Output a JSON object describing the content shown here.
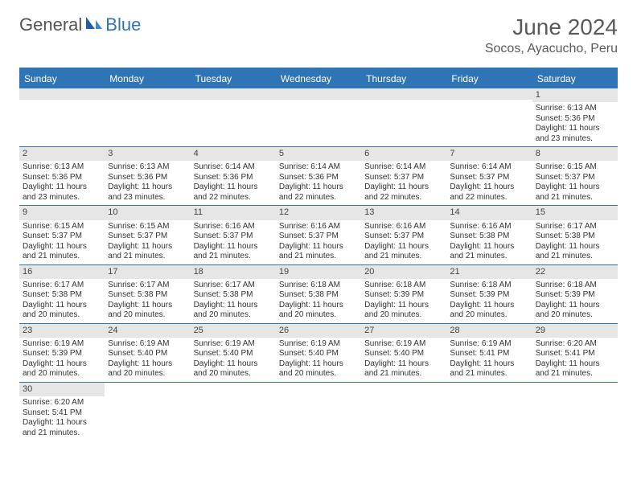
{
  "brand": {
    "part1": "General",
    "part2": "Blue"
  },
  "title": "June 2024",
  "location": "Socos, Ayacucho, Peru",
  "colors": {
    "header_bg": "#2f75b5",
    "header_text": "#ffffff",
    "daynum_bg": "#e6e6e6",
    "border": "#2f75b5",
    "title_color": "#5a5a5a"
  },
  "typography": {
    "title_fontsize": 28,
    "location_fontsize": 16,
    "dow_fontsize": 12,
    "daynum_fontsize": 11,
    "body_fontsize": 10
  },
  "dow": [
    "Sunday",
    "Monday",
    "Tuesday",
    "Wednesday",
    "Thursday",
    "Friday",
    "Saturday"
  ],
  "weeks": [
    [
      null,
      null,
      null,
      null,
      null,
      null,
      {
        "n": "1",
        "sr": "6:13 AM",
        "ss": "5:36 PM",
        "dl": "11 hours and 23 minutes."
      }
    ],
    [
      {
        "n": "2",
        "sr": "6:13 AM",
        "ss": "5:36 PM",
        "dl": "11 hours and 23 minutes."
      },
      {
        "n": "3",
        "sr": "6:13 AM",
        "ss": "5:36 PM",
        "dl": "11 hours and 23 minutes."
      },
      {
        "n": "4",
        "sr": "6:14 AM",
        "ss": "5:36 PM",
        "dl": "11 hours and 22 minutes."
      },
      {
        "n": "5",
        "sr": "6:14 AM",
        "ss": "5:36 PM",
        "dl": "11 hours and 22 minutes."
      },
      {
        "n": "6",
        "sr": "6:14 AM",
        "ss": "5:37 PM",
        "dl": "11 hours and 22 minutes."
      },
      {
        "n": "7",
        "sr": "6:14 AM",
        "ss": "5:37 PM",
        "dl": "11 hours and 22 minutes."
      },
      {
        "n": "8",
        "sr": "6:15 AM",
        "ss": "5:37 PM",
        "dl": "11 hours and 21 minutes."
      }
    ],
    [
      {
        "n": "9",
        "sr": "6:15 AM",
        "ss": "5:37 PM",
        "dl": "11 hours and 21 minutes."
      },
      {
        "n": "10",
        "sr": "6:15 AM",
        "ss": "5:37 PM",
        "dl": "11 hours and 21 minutes."
      },
      {
        "n": "11",
        "sr": "6:16 AM",
        "ss": "5:37 PM",
        "dl": "11 hours and 21 minutes."
      },
      {
        "n": "12",
        "sr": "6:16 AM",
        "ss": "5:37 PM",
        "dl": "11 hours and 21 minutes."
      },
      {
        "n": "13",
        "sr": "6:16 AM",
        "ss": "5:37 PM",
        "dl": "11 hours and 21 minutes."
      },
      {
        "n": "14",
        "sr": "6:16 AM",
        "ss": "5:38 PM",
        "dl": "11 hours and 21 minutes."
      },
      {
        "n": "15",
        "sr": "6:17 AM",
        "ss": "5:38 PM",
        "dl": "11 hours and 21 minutes."
      }
    ],
    [
      {
        "n": "16",
        "sr": "6:17 AM",
        "ss": "5:38 PM",
        "dl": "11 hours and 20 minutes."
      },
      {
        "n": "17",
        "sr": "6:17 AM",
        "ss": "5:38 PM",
        "dl": "11 hours and 20 minutes."
      },
      {
        "n": "18",
        "sr": "6:17 AM",
        "ss": "5:38 PM",
        "dl": "11 hours and 20 minutes."
      },
      {
        "n": "19",
        "sr": "6:18 AM",
        "ss": "5:38 PM",
        "dl": "11 hours and 20 minutes."
      },
      {
        "n": "20",
        "sr": "6:18 AM",
        "ss": "5:39 PM",
        "dl": "11 hours and 20 minutes."
      },
      {
        "n": "21",
        "sr": "6:18 AM",
        "ss": "5:39 PM",
        "dl": "11 hours and 20 minutes."
      },
      {
        "n": "22",
        "sr": "6:18 AM",
        "ss": "5:39 PM",
        "dl": "11 hours and 20 minutes."
      }
    ],
    [
      {
        "n": "23",
        "sr": "6:19 AM",
        "ss": "5:39 PM",
        "dl": "11 hours and 20 minutes."
      },
      {
        "n": "24",
        "sr": "6:19 AM",
        "ss": "5:40 PM",
        "dl": "11 hours and 20 minutes."
      },
      {
        "n": "25",
        "sr": "6:19 AM",
        "ss": "5:40 PM",
        "dl": "11 hours and 20 minutes."
      },
      {
        "n": "26",
        "sr": "6:19 AM",
        "ss": "5:40 PM",
        "dl": "11 hours and 20 minutes."
      },
      {
        "n": "27",
        "sr": "6:19 AM",
        "ss": "5:40 PM",
        "dl": "11 hours and 21 minutes."
      },
      {
        "n": "28",
        "sr": "6:19 AM",
        "ss": "5:41 PM",
        "dl": "11 hours and 21 minutes."
      },
      {
        "n": "29",
        "sr": "6:20 AM",
        "ss": "5:41 PM",
        "dl": "11 hours and 21 minutes."
      }
    ],
    [
      {
        "n": "30",
        "sr": "6:20 AM",
        "ss": "5:41 PM",
        "dl": "11 hours and 21 minutes."
      },
      null,
      null,
      null,
      null,
      null,
      null
    ]
  ],
  "labels": {
    "sunrise": "Sunrise:",
    "sunset": "Sunset:",
    "daylight": "Daylight:"
  }
}
